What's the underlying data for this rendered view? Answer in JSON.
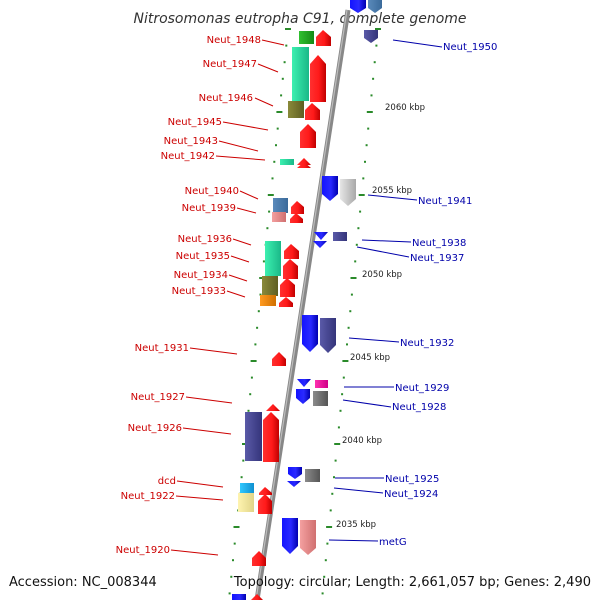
{
  "title": "Nitrosomonas eutropha C91, complete genome",
  "footer": {
    "accession": "Accession: NC_008344",
    "topology": "Topology: circular; Length: 2,661,057 bp; Genes: 2,490"
  },
  "colors": {
    "left_label": "#cc0000",
    "right_label": "#0000aa",
    "backbone": "#888888",
    "tick": "#2a8a2a"
  },
  "scale_labels": [
    "2060 kbp",
    "2055 kbp",
    "2050 kbp",
    "2045 kbp",
    "2040 kbp",
    "2035 kbp"
  ],
  "left_genes": [
    "Neut_1948",
    "Neut_1947",
    "Neut_1946",
    "Neut_1945",
    "Neut_1943",
    "Neut_1942",
    "Neut_1940",
    "Neut_1939",
    "Neut_1936",
    "Neut_1935",
    "Neut_1934",
    "Neut_1933",
    "Neut_1931",
    "Neut_1927",
    "Neut_1926",
    "dcd",
    "Neut_1922",
    "Neut_1920"
  ],
  "right_genes": [
    "Neut_1950",
    "Neut_1941",
    "Neut_1938",
    "Neut_1937",
    "Neut_1932",
    "Neut_1929",
    "Neut_1928",
    "Neut_1925",
    "Neut_1924",
    "metG"
  ]
}
